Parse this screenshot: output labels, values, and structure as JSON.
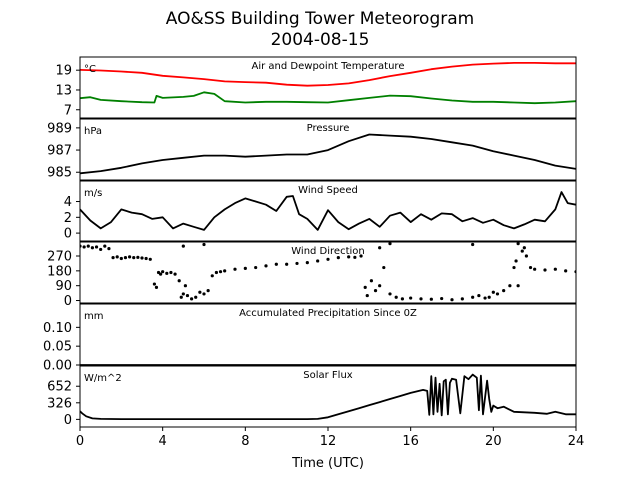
{
  "title": {
    "line1": "AO&SS Building Tower Meteorogram",
    "line2": "2004-08-15"
  },
  "chart_data": {
    "type": "line",
    "xlabel": "Time (UTC)",
    "xlim": [
      0,
      24
    ],
    "xticks": [
      0,
      4,
      8,
      12,
      16,
      20,
      24
    ],
    "panels": [
      {
        "id": "temp",
        "title": "Air and Dewpoint Temperature",
        "unit": "°C",
        "ylim": [
          4.5,
          23
        ],
        "yticks": [
          7,
          13,
          19
        ],
        "series": [
          {
            "color": "#ff0000",
            "style": "line",
            "x": [
              0,
              1,
              2,
              3,
              4,
              5,
              6,
              7,
              8,
              9,
              10,
              11,
              12,
              13,
              14,
              15,
              16,
              17,
              18,
              19,
              20,
              21,
              22,
              23,
              24
            ],
            "values": [
              19.1,
              18.9,
              18.6,
              18.2,
              17.3,
              16.8,
              16.3,
              15.6,
              15.4,
              15.2,
              14.6,
              14.3,
              14.5,
              15.0,
              16.0,
              17.2,
              18.2,
              19.3,
              20.1,
              20.7,
              21.0,
              21.2,
              21.2,
              21.1,
              21.1
            ]
          },
          {
            "color": "#008000",
            "style": "line",
            "x": [
              0,
              0.5,
              1,
              2,
              3,
              3.6,
              3.7,
              4,
              5,
              5.5,
              6,
              6.5,
              7,
              8,
              9,
              10,
              11,
              12,
              13,
              14,
              15,
              16,
              17,
              18,
              19,
              20,
              21,
              22,
              23,
              24
            ],
            "values": [
              10.5,
              10.8,
              10.0,
              9.6,
              9.3,
              9.2,
              11.2,
              10.6,
              10.9,
              11.2,
              12.3,
              11.8,
              9.6,
              9.2,
              9.4,
              9.4,
              9.3,
              9.2,
              9.9,
              10.6,
              11.3,
              11.1,
              10.4,
              9.8,
              9.4,
              9.4,
              9.2,
              9.0,
              9.2,
              9.6
            ]
          }
        ]
      },
      {
        "id": "pressure",
        "title": "Pressure",
        "unit": "hPa",
        "ylim": [
          984.3,
          989.8
        ],
        "yticks": [
          985,
          987,
          989
        ],
        "series": [
          {
            "color": "#000000",
            "style": "line",
            "x": [
              0,
              1,
              2,
              3,
              4,
              5,
              6,
              7,
              8,
              9,
              10,
              11,
              12,
              13,
              14,
              15,
              16,
              17,
              18,
              19,
              20,
              21,
              22,
              23,
              24
            ],
            "values": [
              984.9,
              985.1,
              985.4,
              985.8,
              986.1,
              986.3,
              986.5,
              986.5,
              986.4,
              986.5,
              986.6,
              986.6,
              987.0,
              987.8,
              988.4,
              988.3,
              988.2,
              988.0,
              987.7,
              987.4,
              986.9,
              986.5,
              986.1,
              985.6,
              985.3
            ]
          }
        ]
      },
      {
        "id": "wind-speed",
        "title": "Wind Speed",
        "unit": "m/s",
        "ylim": [
          -1,
          6.6
        ],
        "yticks": [
          0,
          2,
          4
        ],
        "series": [
          {
            "color": "#000000",
            "style": "line",
            "x": [
              0,
              0.5,
              1,
              1.5,
              2,
              2.5,
              3,
              3.5,
              4,
              4.5,
              5,
              5.5,
              6,
              6.5,
              7,
              7.5,
              8,
              8.5,
              9,
              9.5,
              10,
              10.3,
              10.6,
              11,
              11.5,
              12,
              12.5,
              13,
              13.5,
              14,
              14.5,
              15,
              15.5,
              16,
              16.5,
              17,
              17.5,
              18,
              18.5,
              19,
              19.5,
              20,
              20.5,
              21,
              21.5,
              22,
              22.5,
              23,
              23.3,
              23.6,
              24
            ],
            "values": [
              3.0,
              1.6,
              0.6,
              1.4,
              3.0,
              2.6,
              2.4,
              1.8,
              2.0,
              0.6,
              1.2,
              0.8,
              0.4,
              2.0,
              3.0,
              3.8,
              4.4,
              4.0,
              3.6,
              2.8,
              4.6,
              4.7,
              2.4,
              1.8,
              0.4,
              2.9,
              1.4,
              0.5,
              1.2,
              1.8,
              0.8,
              2.2,
              2.6,
              1.4,
              2.4,
              1.7,
              2.5,
              2.4,
              1.5,
              1.9,
              1.3,
              1.7,
              1.0,
              0.6,
              1.1,
              1.7,
              1.5,
              3.0,
              5.2,
              3.8,
              3.6
            ]
          }
        ]
      },
      {
        "id": "wind-dir",
        "title": "Wind Direction",
        "unit": "",
        "ylim": [
          -15,
          355
        ],
        "yticks": [
          0,
          90,
          180,
          270
        ],
        "series": [
          {
            "color": "#000000",
            "style": "dots",
            "x": [
              0,
              0.2,
              0.4,
              0.6,
              0.8,
              1.0,
              1.2,
              1.4,
              1.6,
              1.8,
              2.0,
              2.2,
              2.4,
              2.6,
              2.8,
              3.0,
              3.2,
              3.4,
              3.6,
              3.7,
              3.8,
              3.9,
              4.0,
              4.2,
              4.4,
              4.6,
              4.8,
              4.9,
              5.0,
              5.1,
              5.2,
              5.4,
              5.6,
              5.8,
              6.0,
              6.2,
              6.4,
              6.6,
              6.8,
              7,
              7.5,
              8,
              8.5,
              9,
              9.5,
              10,
              10.5,
              11,
              11.5,
              12,
              12.5,
              13,
              13.3,
              13.6,
              13.8,
              13.9,
              14.1,
              14.3,
              14.5,
              14.7,
              15.0,
              15.3,
              15.6,
              16,
              16.5,
              17,
              17.5,
              18,
              18.5,
              19,
              19.3,
              19.6,
              19.8,
              20,
              20.2,
              20.5,
              20.8,
              21.0,
              21.1,
              21.2,
              21.4,
              21.6,
              21.8,
              22,
              22.5,
              23,
              23.5,
              24,
              5.0,
              6.0,
              14.5,
              15.0,
              19.0,
              21.2,
              21.5
            ],
            "values": [
              330,
              325,
              330,
              320,
              325,
              310,
              330,
              315,
              260,
              265,
              255,
              260,
              265,
              260,
              262,
              258,
              255,
              250,
              100,
              80,
              170,
              160,
              175,
              165,
              170,
              160,
              120,
              20,
              40,
              90,
              30,
              10,
              20,
              50,
              40,
              60,
              150,
              170,
              175,
              180,
              190,
              195,
              200,
              210,
              220,
              220,
              225,
              230,
              240,
              250,
              260,
              265,
              262,
              270,
              80,
              30,
              120,
              60,
              90,
              200,
              40,
              20,
              10,
              15,
              10,
              8,
              12,
              5,
              10,
              20,
              30,
              15,
              20,
              50,
              40,
              60,
              90,
              200,
              240,
              90,
              300,
              270,
              200,
              190,
              185,
              190,
              180,
              175,
              330,
              340,
              320,
              345,
              340,
              345,
              320
            ]
          }
        ]
      },
      {
        "id": "precip",
        "title": "Accumulated Precipitation Since 0Z",
        "unit": "mm",
        "ylim": [
          0,
          0.162
        ],
        "yticks": [
          0.0,
          0.05,
          0.1
        ],
        "ytick_labels": [
          "0.00",
          "0.05",
          "0.10"
        ],
        "series": [
          {
            "color": "#000000",
            "style": "line",
            "x": [
              0,
              24
            ],
            "values": [
              0,
              0
            ]
          }
        ]
      },
      {
        "id": "solar",
        "title": "Solar Flux",
        "unit": "W/m^2",
        "ylim": [
          -150,
          1050
        ],
        "yticks": [
          0,
          326,
          652
        ],
        "series": [
          {
            "color": "#000000",
            "style": "line",
            "x": [
              0,
              0.1,
              0.3,
              0.6,
              1,
              2,
              4,
              6,
              8,
              10,
              11,
              11.5,
              12,
              12.5,
              13,
              13.5,
              14,
              14.5,
              15,
              15.5,
              16,
              16.3,
              16.6,
              16.8,
              16.9,
              17.0,
              17.1,
              17.2,
              17.3,
              17.4,
              17.5,
              17.6,
              17.7,
              17.8,
              17.9,
              18.0,
              18.2,
              18.4,
              18.6,
              18.8,
              19.0,
              19.2,
              19.3,
              19.4,
              19.5,
              19.7,
              19.8,
              19.9,
              20.0,
              20.2,
              20.5,
              21,
              21.5,
              22,
              22.3,
              22.6,
              23,
              23.5,
              24
            ],
            "values": [
              160,
              120,
              60,
              20,
              10,
              5,
              5,
              5,
              5,
              5,
              5,
              10,
              40,
              100,
              160,
              220,
              280,
              340,
              400,
              460,
              520,
              550,
              580,
              560,
              90,
              850,
              100,
              820,
              150,
              700,
              80,
              750,
              780,
              100,
              720,
              800,
              780,
              120,
              850,
              790,
              880,
              820,
              180,
              860,
              100,
              760,
              400,
              150,
              270,
              220,
              250,
              150,
              140,
              130,
              120,
              110,
              150,
              100,
              100
            ]
          }
        ]
      }
    ]
  }
}
